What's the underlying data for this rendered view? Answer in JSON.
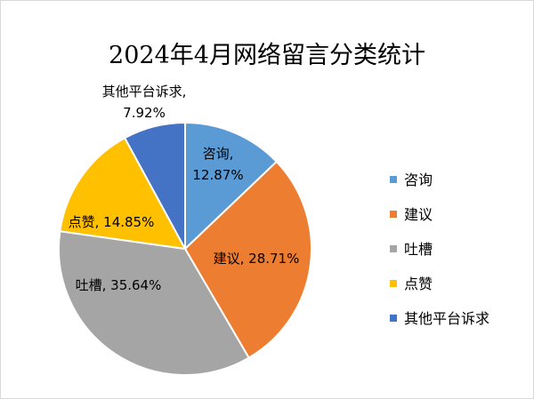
{
  "chart_data": {
    "type": "pie",
    "title": "2024年4月网络留言分类统计",
    "legend_position": "right",
    "slices": [
      {
        "name": "咨询",
        "value": 12.87,
        "label_value": "12.87%",
        "color": "#5B9BD5"
      },
      {
        "name": "建议",
        "value": 28.71,
        "label_value": "28.71%",
        "color": "#ED7D31"
      },
      {
        "name": "吐槽",
        "value": 35.64,
        "label_value": "35.64%",
        "color": "#A5A5A5"
      },
      {
        "name": "点赞",
        "value": 14.85,
        "label_value": "14.85%",
        "color": "#FFC000"
      },
      {
        "name": "其他平台诉求",
        "value": 7.92,
        "label_value": "7.92%",
        "color": "#4472C4"
      }
    ]
  }
}
